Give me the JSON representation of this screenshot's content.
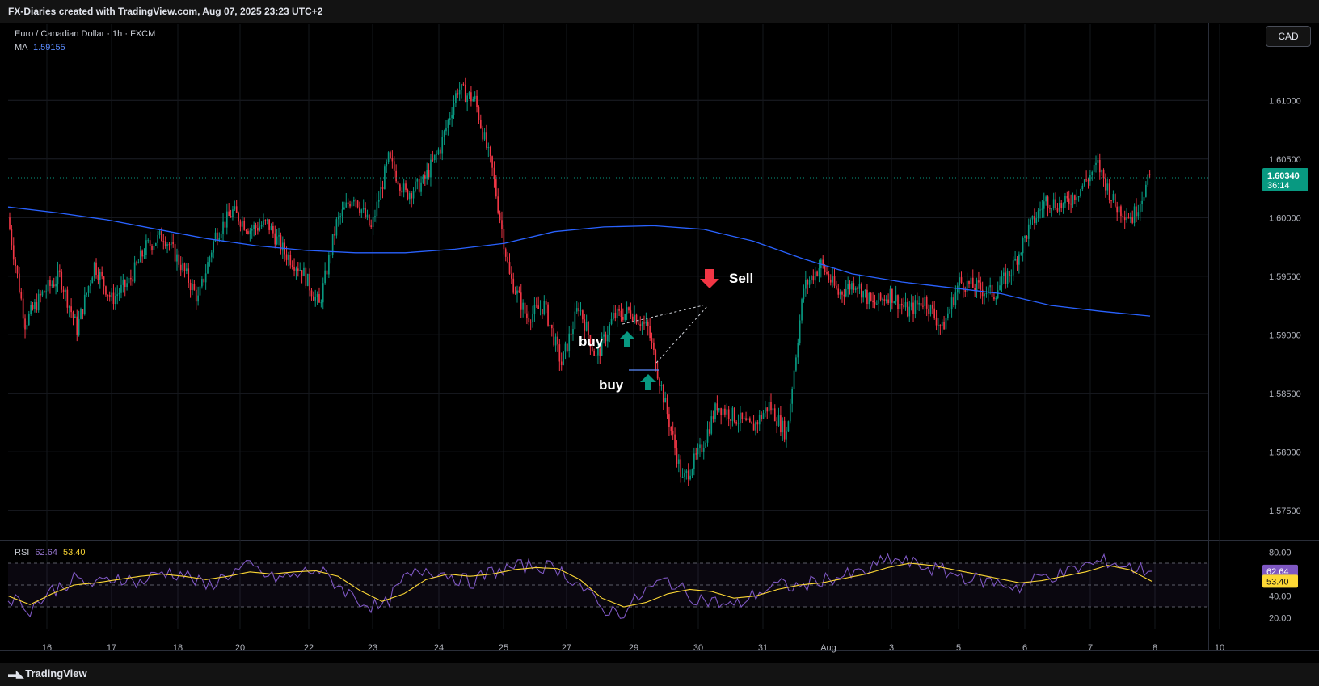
{
  "header": {
    "attribution": "FX-Diaries created with TradingView.com, Aug 07, 2025 23:23 UTC+2"
  },
  "symbol": {
    "name": "Euro / Canadian Dollar · 1h · FXCM",
    "ma_label": "MA",
    "ma_value": "1.59155"
  },
  "currency_button": "CAD",
  "price_axis": {
    "labels": [
      "1.61000",
      "1.60500",
      "1.60000",
      "1.59500",
      "1.59000",
      "1.58500",
      "1.58000",
      "1.57500"
    ],
    "ymin": 1.5725,
    "ymax": 1.6165
  },
  "last_price": {
    "value": "1.60340",
    "countdown": "36:14",
    "color": "#089981"
  },
  "time_axis": {
    "labels": [
      "16",
      "17",
      "18",
      "20",
      "22",
      "23",
      "24",
      "25",
      "27",
      "29",
      "30",
      "31",
      "Aug",
      "3",
      "5",
      "6",
      "7",
      "8",
      "10"
    ]
  },
  "annotations": {
    "sell_label": "Sell",
    "buy_label_1": "buy",
    "buy_label_2": "buy"
  },
  "rsi": {
    "label": "RSI",
    "value": "62.64",
    "ma_value": "53.40",
    "axis_labels": [
      "80.00",
      "40.00",
      "20.00"
    ],
    "bands": [
      70,
      50,
      30
    ]
  },
  "branding": {
    "name": "TradingView"
  },
  "colors": {
    "up": "#089981",
    "down": "#f23645",
    "ma": "#2962ff",
    "rsi": "#7e57c2",
    "rsi_ma": "#fdd835"
  },
  "chart_data": {
    "type": "candlestick",
    "title": "Euro / Canadian Dollar · 1h · FXCM",
    "x": [
      "16",
      "17",
      "18",
      "20",
      "22",
      "23",
      "24",
      "25",
      "27",
      "29",
      "30",
      "31",
      "Aug",
      "3",
      "5",
      "6",
      "7",
      "8"
    ],
    "close_path": [
      1.6,
      1.591,
      1.5935,
      1.595,
      1.5905,
      1.596,
      1.593,
      1.5945,
      1.5975,
      1.5985,
      1.596,
      1.593,
      1.5985,
      1.6005,
      1.599,
      1.5995,
      1.597,
      1.5955,
      1.5925,
      1.5995,
      1.602,
      1.599,
      1.605,
      1.602,
      1.603,
      1.606,
      1.611,
      1.61,
      1.604,
      1.595,
      1.5915,
      1.5925,
      1.5875,
      1.5925,
      1.588,
      1.5915,
      1.592,
      1.5905,
      1.584,
      1.5775,
      1.58,
      1.584,
      1.583,
      1.582,
      1.584,
      1.5815,
      1.594,
      1.596,
      1.5935,
      1.5945,
      1.5925,
      1.5935,
      1.592,
      1.593,
      1.5905,
      1.5945,
      1.594,
      1.5935,
      1.5955,
      1.599,
      1.6015,
      1.601,
      1.6025,
      1.6045,
      1.601,
      1.6,
      1.6034
    ],
    "ma_path": [
      1.6009,
      1.6004,
      1.5998,
      1.599,
      1.5982,
      1.5976,
      1.5972,
      1.597,
      1.597,
      1.5973,
      1.5978,
      1.5988,
      1.5992,
      1.5993,
      1.599,
      1.598,
      1.5965,
      1.5952,
      1.5945,
      1.594,
      1.5935,
      1.5925,
      1.592,
      1.5916
    ],
    "rsi_path": [
      40,
      28,
      45,
      55,
      50,
      58,
      52,
      62,
      60,
      48,
      60,
      67,
      56,
      58,
      65,
      50,
      35,
      28,
      55,
      65,
      60,
      52,
      62,
      66,
      68,
      65,
      50,
      28,
      25,
      45,
      55,
      40,
      35,
      30,
      42,
      50,
      48,
      55,
      58,
      62,
      74,
      70,
      65,
      60,
      55,
      52,
      48,
      58,
      60,
      68,
      72,
      66,
      62.64
    ],
    "rsi_ma_path": [
      40,
      32,
      42,
      50,
      52,
      55,
      58,
      60,
      58,
      55,
      58,
      62,
      60,
      62,
      63,
      58,
      45,
      35,
      42,
      55,
      60,
      58,
      60,
      64,
      66,
      65,
      55,
      38,
      30,
      34,
      42,
      46,
      44,
      38,
      40,
      46,
      50,
      52,
      56,
      60,
      66,
      70,
      68,
      64,
      60,
      56,
      52,
      54,
      58,
      62,
      68,
      64,
      53.4
    ],
    "last_price": 1.6034
  }
}
